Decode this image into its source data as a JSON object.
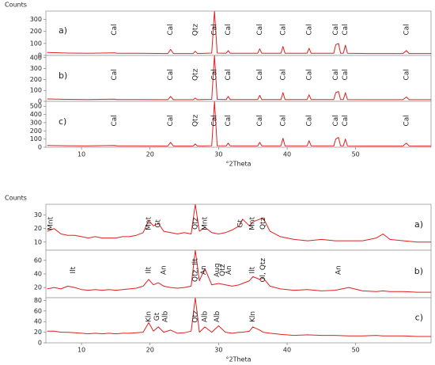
{
  "chart_data": [
    {
      "type": "line",
      "y_label": "Counts",
      "label": "a)",
      "label_corner": "left",
      "color": "#e02020",
      "xlim": [
        4.8,
        61
      ],
      "ylim": [
        0,
        370
      ],
      "yticks": [
        0,
        100,
        200,
        300
      ],
      "x": [
        5,
        8,
        11,
        14.8,
        15.2,
        18,
        22.6,
        23.0,
        23.4,
        26.3,
        26.6,
        26.9,
        29.0,
        29.4,
        29.8,
        31.1,
        31.4,
        31.7,
        35.7,
        36.0,
        36.3,
        39.1,
        39.4,
        39.7,
        42.9,
        43.2,
        43.5,
        46.8,
        47.1,
        47.5,
        47.8,
        48.2,
        48.5,
        48.8,
        52,
        56.9,
        57.4,
        57.8,
        61
      ],
      "values": [
        25,
        20,
        18,
        22,
        18,
        18,
        16,
        50,
        16,
        16,
        35,
        16,
        20,
        370,
        20,
        18,
        40,
        18,
        18,
        55,
        18,
        18,
        75,
        18,
        18,
        60,
        18,
        18,
        90,
        100,
        18,
        18,
        85,
        18,
        16,
        16,
        40,
        16,
        16
      ],
      "annotations": [
        {
          "x": 14.8,
          "text": "Cal"
        },
        {
          "x": 23.0,
          "text": "Cal"
        },
        {
          "x": 26.6,
          "text": "Qtz"
        },
        {
          "x": 29.4,
          "text": "Cal"
        },
        {
          "x": 31.4,
          "text": "Cal"
        },
        {
          "x": 36.0,
          "text": "Cal"
        },
        {
          "x": 39.4,
          "text": "Cal"
        },
        {
          "x": 43.2,
          "text": "Cal"
        },
        {
          "x": 47.1,
          "text": "Cal"
        },
        {
          "x": 48.5,
          "text": "Cal"
        },
        {
          "x": 57.4,
          "text": "Cal"
        }
      ]
    },
    {
      "type": "line",
      "label": "b)",
      "label_corner": "left",
      "color": "#e02020",
      "xlim": [
        4.8,
        61
      ],
      "ylim": [
        0,
        420
      ],
      "yticks": [
        0,
        100,
        200,
        300,
        400
      ],
      "x": [
        5,
        8,
        11,
        14.8,
        15.2,
        18,
        22.6,
        23.0,
        23.4,
        26.3,
        26.6,
        26.9,
        29.0,
        29.4,
        29.8,
        31.1,
        31.4,
        31.7,
        35.7,
        36.0,
        36.3,
        39.1,
        39.4,
        39.7,
        42.9,
        43.2,
        43.5,
        46.8,
        47.1,
        47.5,
        47.8,
        48.2,
        48.5,
        48.8,
        52,
        56.9,
        57.4,
        57.8,
        61
      ],
      "values": [
        22,
        18,
        16,
        20,
        16,
        16,
        15,
        45,
        15,
        15,
        30,
        15,
        18,
        420,
        18,
        16,
        45,
        16,
        16,
        55,
        16,
        16,
        80,
        16,
        16,
        60,
        16,
        16,
        80,
        90,
        16,
        16,
        80,
        16,
        15,
        15,
        40,
        15,
        15
      ],
      "annotations": [
        {
          "x": 14.8,
          "text": "Cal"
        },
        {
          "x": 23.0,
          "text": "Cal"
        },
        {
          "x": 26.6,
          "text": "Qtz"
        },
        {
          "x": 29.4,
          "text": "Cal"
        },
        {
          "x": 31.4,
          "text": "Cal"
        },
        {
          "x": 36.0,
          "text": "Cal"
        },
        {
          "x": 39.4,
          "text": "Cal"
        },
        {
          "x": 43.2,
          "text": "Cal"
        },
        {
          "x": 47.1,
          "text": "Cal"
        },
        {
          "x": 48.5,
          "text": "Cal"
        },
        {
          "x": 57.4,
          "text": "Cal"
        }
      ]
    },
    {
      "type": "line",
      "label": "c)",
      "label_corner": "left",
      "color": "#e02020",
      "x_label": "°2Theta",
      "xlim": [
        4.8,
        61
      ],
      "ylim": [
        0,
        560
      ],
      "yticks": [
        0,
        100,
        200,
        300,
        400,
        500
      ],
      "xticks": [
        10,
        20,
        30,
        40,
        50
      ],
      "x": [
        5,
        8,
        11,
        14.8,
        15.2,
        18,
        22.6,
        23.0,
        23.4,
        26.3,
        26.6,
        26.9,
        29.0,
        29.4,
        29.8,
        31.1,
        31.4,
        31.7,
        35.7,
        36.0,
        36.3,
        39.1,
        39.4,
        39.7,
        42.9,
        43.2,
        43.5,
        46.8,
        47.1,
        47.5,
        47.8,
        48.2,
        48.5,
        48.8,
        52,
        56.9,
        57.4,
        57.8,
        61
      ],
      "values": [
        22,
        18,
        16,
        22,
        16,
        16,
        15,
        60,
        15,
        15,
        40,
        15,
        18,
        560,
        18,
        16,
        50,
        16,
        16,
        60,
        16,
        16,
        110,
        16,
        16,
        80,
        16,
        16,
        100,
        120,
        16,
        16,
        100,
        16,
        15,
        15,
        50,
        15,
        15
      ],
      "annotations": [
        {
          "x": 14.8,
          "text": "Cal"
        },
        {
          "x": 23.0,
          "text": "Cal"
        },
        {
          "x": 26.6,
          "text": "Qtz"
        },
        {
          "x": 29.4,
          "text": "Cal"
        },
        {
          "x": 31.4,
          "text": "Cal"
        },
        {
          "x": 36.0,
          "text": "Cal"
        },
        {
          "x": 39.4,
          "text": "Cal"
        },
        {
          "x": 43.2,
          "text": "Cal"
        },
        {
          "x": 47.1,
          "text": "Cal"
        },
        {
          "x": 48.5,
          "text": "Cal"
        },
        {
          "x": 57.4,
          "text": "Cal"
        }
      ]
    },
    {
      "type": "line",
      "y_label": "Counts",
      "label": "a)",
      "label_corner": "right",
      "color": "#e02020",
      "xlim": [
        4.8,
        61
      ],
      "ylim": [
        4,
        38
      ],
      "yticks": [
        10,
        20,
        30
      ],
      "x": [
        5,
        6,
        7,
        8,
        9,
        10,
        11,
        12,
        13,
        14,
        15,
        16,
        17,
        18,
        19,
        19.8,
        20.5,
        21.2,
        22,
        23,
        24,
        25,
        26,
        26.6,
        27.2,
        28,
        29,
        30,
        31,
        32,
        33,
        33.5,
        34.5,
        35,
        36,
        36.5,
        37.5,
        39,
        41,
        43,
        45,
        47,
        49,
        51,
        53,
        54,
        55,
        57,
        59,
        61
      ],
      "values": [
        18,
        20,
        16,
        15,
        15,
        14,
        13,
        14,
        13,
        13,
        13,
        14,
        14,
        15,
        17,
        26,
        22,
        24,
        18,
        17,
        16,
        17,
        16,
        38,
        18,
        21,
        17,
        16,
        17,
        19,
        22,
        27,
        22,
        25,
        27,
        28,
        18,
        14,
        12,
        11,
        12,
        11,
        11,
        11,
        13,
        16,
        12,
        11,
        10,
        10
      ],
      "annotations": [
        {
          "x": 5.5,
          "text": "Mnt"
        },
        {
          "x": 19.8,
          "text": "Mnt"
        },
        {
          "x": 21.2,
          "text": "Gt"
        },
        {
          "x": 26.6,
          "text": "Qtz"
        },
        {
          "x": 28.0,
          "text": "Mnt"
        },
        {
          "x": 33.2,
          "text": "Gt"
        },
        {
          "x": 34.9,
          "text": "Mnt"
        },
        {
          "x": 36.5,
          "text": "Qtz"
        }
      ]
    },
    {
      "type": "line",
      "label": "b)",
      "label_corner": "right",
      "color": "#e02020",
      "xlim": [
        4.8,
        61
      ],
      "ylim": [
        5,
        75
      ],
      "yticks": [
        20,
        40,
        60
      ],
      "x": [
        5,
        6,
        7,
        8,
        9,
        10,
        11,
        12,
        13,
        14,
        15,
        16,
        17,
        18,
        19,
        19.8,
        20.5,
        21.2,
        22,
        23,
        24,
        25,
        26,
        26.6,
        27.2,
        28,
        29,
        30,
        31,
        32,
        33,
        33.5,
        34.5,
        35,
        36,
        36.5,
        37.5,
        39,
        41,
        43,
        45,
        47,
        49,
        51,
        53,
        54,
        55,
        57,
        59,
        61
      ],
      "values": [
        18,
        20,
        18,
        22,
        20,
        17,
        16,
        17,
        16,
        17,
        16,
        17,
        18,
        19,
        22,
        32,
        24,
        27,
        22,
        20,
        19,
        20,
        22,
        75,
        30,
        48,
        24,
        26,
        24,
        22,
        24,
        26,
        30,
        36,
        32,
        34,
        22,
        18,
        16,
        17,
        15,
        16,
        20,
        15,
        14,
        15,
        14,
        14,
        13,
        13
      ],
      "annotations": [
        {
          "x": 8.8,
          "text": "Ilt"
        },
        {
          "x": 19.8,
          "text": "Ilt"
        },
        {
          "x": 22.0,
          "text": "An"
        },
        {
          "x": 26.6,
          "text": "Qtz, Ilt"
        },
        {
          "x": 27.8,
          "text": "An"
        },
        {
          "x": 29.8,
          "text": "Aug"
        },
        {
          "x": 30.6,
          "text": "Qtz"
        },
        {
          "x": 31.5,
          "text": "An"
        },
        {
          "x": 34.9,
          "text": "Ilt"
        },
        {
          "x": 36.5,
          "text": "Ol, Qtz"
        },
        {
          "x": 47.5,
          "text": "An"
        }
      ]
    },
    {
      "type": "line",
      "label": "c)",
      "label_corner": "right",
      "color": "#e02020",
      "x_label": "°2Theta",
      "xlim": [
        4.8,
        61
      ],
      "ylim": [
        0,
        85
      ],
      "yticks": [
        0,
        20,
        40,
        60,
        80
      ],
      "xticks": [
        10,
        20,
        30,
        40,
        50
      ],
      "x": [
        5,
        6,
        7,
        8,
        9,
        10,
        11,
        12,
        13,
        14,
        15,
        16,
        17,
        18,
        19,
        19.8,
        20.5,
        21.2,
        22,
        23,
        24,
        25,
        26,
        26.6,
        27.2,
        28,
        29,
        30,
        31,
        32,
        33,
        33.5,
        34.5,
        35,
        36,
        36.5,
        37.5,
        39,
        41,
        43,
        45,
        47,
        49,
        51,
        53,
        54,
        55,
        57,
        59,
        61
      ],
      "values": [
        22,
        22,
        20,
        20,
        19,
        18,
        17,
        18,
        17,
        18,
        17,
        18,
        18,
        19,
        20,
        38,
        22,
        30,
        20,
        24,
        18,
        19,
        22,
        85,
        20,
        30,
        20,
        32,
        20,
        18,
        20,
        20,
        22,
        30,
        24,
        20,
        18,
        16,
        14,
        15,
        14,
        14,
        13,
        13,
        14,
        13,
        13,
        13,
        12,
        12
      ],
      "annotations": [
        {
          "x": 19.8,
          "text": "Kln"
        },
        {
          "x": 21.0,
          "text": "Gt"
        },
        {
          "x": 22.2,
          "text": "Alb"
        },
        {
          "x": 26.6,
          "text": "Qtz"
        },
        {
          "x": 28.0,
          "text": "Alb"
        },
        {
          "x": 29.8,
          "text": "Alb"
        },
        {
          "x": 35.0,
          "text": "Kln"
        }
      ]
    }
  ]
}
